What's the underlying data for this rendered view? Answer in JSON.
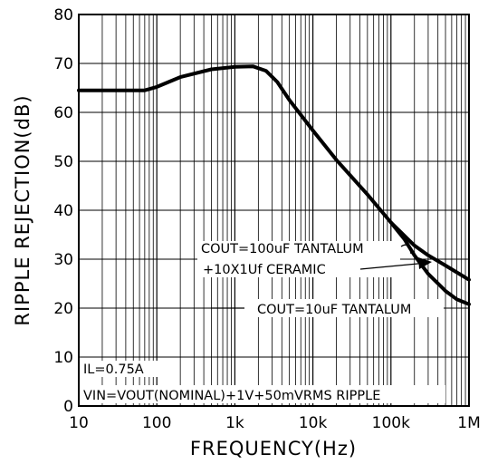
{
  "chart_data": {
    "type": "line",
    "xlabel": "FREQUENCY(Hz)",
    "ylabel": "RIPPLE REJECTION(dB)",
    "x_scale": "log",
    "xlim": [
      10,
      1000000
    ],
    "ylim": [
      0,
      80
    ],
    "grid": true,
    "x_ticks": [
      {
        "value": 10,
        "label": "10"
      },
      {
        "value": 100,
        "label": "100"
      },
      {
        "value": 1000,
        "label": "1k"
      },
      {
        "value": 10000,
        "label": "10k"
      },
      {
        "value": 100000,
        "label": "100k"
      },
      {
        "value": 1000000,
        "label": "1M"
      }
    ],
    "y_ticks": [
      {
        "value": 0,
        "label": "0"
      },
      {
        "value": 10,
        "label": "10"
      },
      {
        "value": 20,
        "label": "20"
      },
      {
        "value": 30,
        "label": "30"
      },
      {
        "value": 40,
        "label": "40"
      },
      {
        "value": 50,
        "label": "50"
      },
      {
        "value": 60,
        "label": "60"
      },
      {
        "value": 70,
        "label": "70"
      },
      {
        "value": 80,
        "label": "80"
      }
    ],
    "series": [
      {
        "name": "COUT=100uF TANTALUM +10X1Uf CERAMIC",
        "x": [
          10,
          70,
          100,
          200,
          500,
          1000,
          1700,
          2500,
          3500,
          5000,
          10000,
          20000,
          50000,
          100000,
          200000,
          300000,
          500000,
          1000000
        ],
        "y": [
          64.5,
          64.5,
          65.2,
          67.2,
          68.8,
          69.3,
          69.4,
          68.5,
          66.2,
          62.5,
          56.3,
          50.3,
          43.2,
          37.5,
          32.8,
          30.8,
          28.7,
          25.8
        ]
      },
      {
        "name": "COUT=10uF TANTALUM",
        "x": [
          100000,
          150000,
          200000,
          300000,
          500000,
          700000,
          1000000
        ],
        "y": [
          37.5,
          34.0,
          30.8,
          27.0,
          23.5,
          21.8,
          20.8
        ]
      }
    ],
    "annotations": [
      {
        "id": "label-100uf-line1",
        "text": "COUT=100uF TANTALUM"
      },
      {
        "id": "label-100uf-line2",
        "text": "+10X1Uf CERAMIC"
      },
      {
        "id": "label-10uf",
        "text": "COUT=10uF TANTALUM"
      },
      {
        "id": "note-il",
        "text": "IL=0.75A"
      },
      {
        "id": "note-vin",
        "text": "VIN=VOUT(NOMINAL)+1V+50mVRMS RIPPLE"
      }
    ]
  }
}
